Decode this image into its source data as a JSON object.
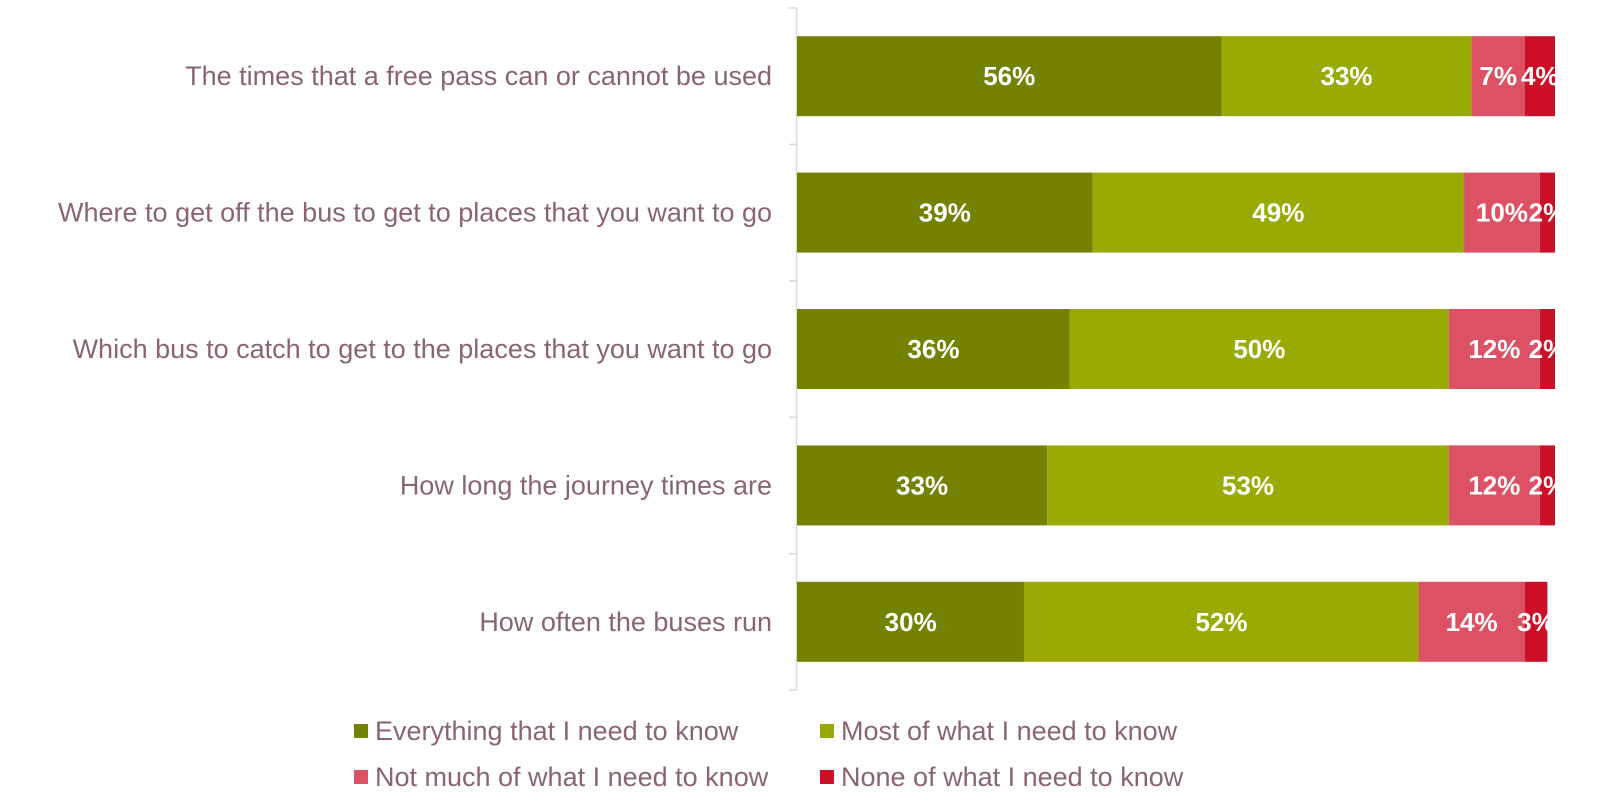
{
  "chart_data": {
    "type": "bar",
    "orientation": "horizontal",
    "stacked": true,
    "title": "",
    "xlabel": "",
    "ylabel": "",
    "xlim": [
      0,
      100
    ],
    "categories": [
      "The times that a free pass can or cannot be used",
      "Where to get off the bus to get to places that you want to go",
      "Which bus to catch to get to the places that you want to go",
      "How long the journey times are",
      "How often the buses run"
    ],
    "series": [
      {
        "name": "Everything that I need to know",
        "color": "#758103",
        "values": [
          56,
          39,
          36,
          33,
          30
        ],
        "labels": [
          "56%",
          "39%",
          "36%",
          "33%",
          "30%"
        ]
      },
      {
        "name": "Most of what I need to know",
        "color": "#99aa04",
        "values": [
          33,
          49,
          50,
          53,
          52
        ],
        "labels": [
          "33%",
          "49%",
          "50%",
          "53%",
          "52%"
        ]
      },
      {
        "name": "Not much of what I need to know",
        "color": "#dd5164",
        "values": [
          7,
          10,
          12,
          12,
          14
        ],
        "labels": [
          "7%",
          "10%",
          "12%",
          "12%",
          "14%"
        ]
      },
      {
        "name": "None of what I need to know",
        "color": "#cc1028",
        "values": [
          4,
          2,
          2,
          2,
          3
        ],
        "labels": [
          "4%",
          "2%",
          "2%",
          "2%",
          "3%"
        ]
      }
    ],
    "legend": "bottom",
    "grid": false
  }
}
